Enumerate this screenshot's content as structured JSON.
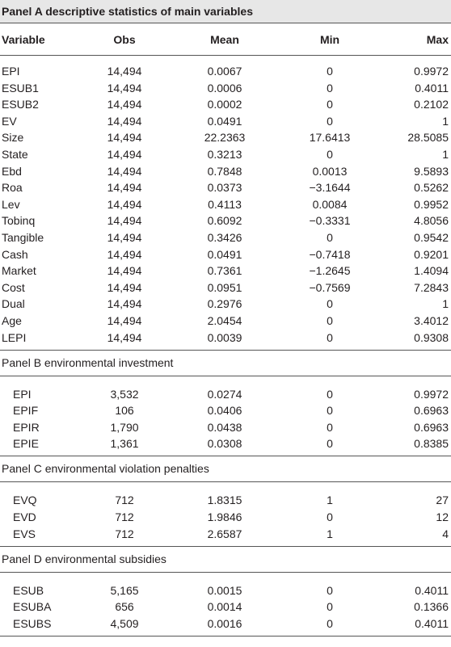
{
  "table": {
    "title": "Panel A descriptive statistics of main variables",
    "columns": [
      "Variable",
      "Obs",
      "Mean",
      "Min",
      "Max"
    ],
    "sections": [
      {
        "rows": [
          [
            "EPI",
            "14,494",
            "0.0067",
            "0",
            "0.9972"
          ],
          [
            "ESUB1",
            "14,494",
            "0.0006",
            "0",
            "0.4011"
          ],
          [
            "ESUB2",
            "14,494",
            "0.0002",
            "0",
            "0.2102"
          ],
          [
            "EV",
            "14,494",
            "0.0491",
            "0",
            "1"
          ],
          [
            "Size",
            "14,494",
            "22.2363",
            "17.6413",
            "28.5085"
          ],
          [
            "State",
            "14,494",
            "0.3213",
            "0",
            "1"
          ],
          [
            "Ebd",
            "14,494",
            "0.7848",
            "0.0013",
            "9.5893"
          ],
          [
            "Roa",
            "14,494",
            "0.0373",
            "−3.1644",
            "0.5262"
          ],
          [
            "Lev",
            "14,494",
            "0.4113",
            "0.0084",
            "0.9952"
          ],
          [
            "Tobinq",
            "14,494",
            "0.6092",
            "−0.3331",
            "4.8056"
          ],
          [
            "Tangible",
            "14,494",
            "0.3426",
            "0",
            "0.9542"
          ],
          [
            "Cash",
            "14,494",
            "0.0491",
            "−0.7418",
            "0.9201"
          ],
          [
            "Market",
            "14,494",
            "0.7361",
            "−1.2645",
            "1.4094"
          ],
          [
            "Cost",
            "14,494",
            "0.0951",
            "−0.7569",
            "7.2843"
          ],
          [
            "Dual",
            "14,494",
            "0.2976",
            "0",
            "1"
          ],
          [
            "Age",
            "14,494",
            "2.0454",
            "0",
            "3.4012"
          ],
          [
            "LEPI",
            "14,494",
            "0.0039",
            "0",
            "0.9308"
          ]
        ]
      },
      {
        "title": "Panel B environmental investment",
        "rows": [
          [
            "EPI",
            "3,532",
            "0.0274",
            "0",
            "0.9972"
          ],
          [
            "EPIF",
            "106",
            "0.0406",
            "0",
            "0.6963"
          ],
          [
            "EPIR",
            "1,790",
            "0.0438",
            "0",
            "0.6963"
          ],
          [
            "EPIE",
            "1,361",
            "0.0308",
            "0",
            "0.8385"
          ]
        ]
      },
      {
        "title": "Panel C environmental violation penalties",
        "rows": [
          [
            "EVQ",
            "712",
            "1.8315",
            "1",
            "27"
          ],
          [
            "EVD",
            "712",
            "1.9846",
            "0",
            "12"
          ],
          [
            "EVS",
            "712",
            "2.6587",
            "1",
            "4"
          ]
        ]
      },
      {
        "title": "Panel D environmental subsidies",
        "rows": [
          [
            "ESUB",
            "5,165",
            "0.0015",
            "0",
            "0.4011"
          ],
          [
            "ESUBA",
            "656",
            "0.0014",
            "0",
            "0.1366"
          ],
          [
            "ESUBS",
            "4,509",
            "0.0016",
            "0",
            "0.4011"
          ]
        ]
      }
    ]
  }
}
